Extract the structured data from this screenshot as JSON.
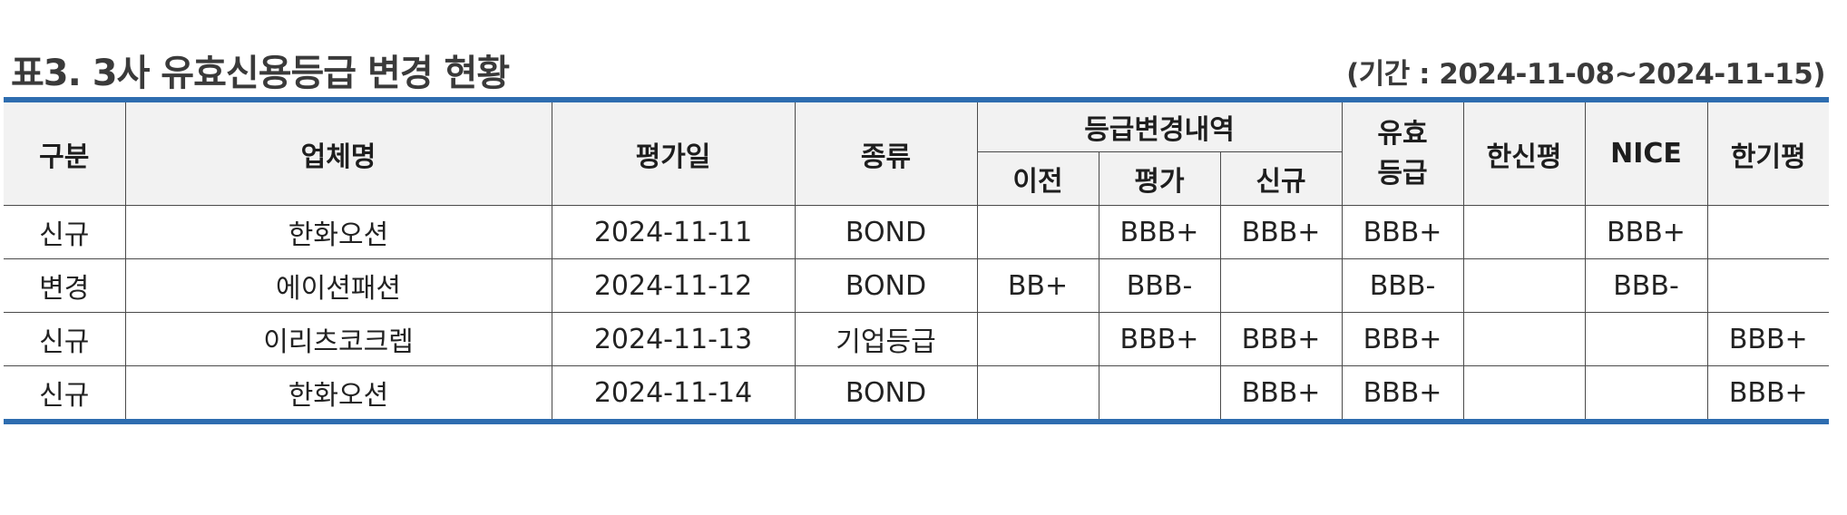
{
  "title": "표3. 3사 유효신용등급 변경 현황",
  "period": "(기간 : 2024-11-08~2024-11-15)",
  "colors": {
    "accent_border": "#2e6db0",
    "header_bg": "#f2f2f2"
  },
  "table": {
    "headers": {
      "category": "구분",
      "company": "업체명",
      "eval_date": "평가일",
      "kind": "종류",
      "change_group": "등급변경내역",
      "prev": "이전",
      "eval": "평가",
      "new": "신규",
      "valid_line1": "유효",
      "valid_line2": "등급",
      "hanshin": "한신평",
      "nice": "NICE",
      "hangi": "한기평"
    },
    "rows": [
      {
        "category": "신규",
        "company": "한화오션",
        "eval_date": "2024-11-11",
        "kind": "BOND",
        "prev": "",
        "eval": "BBB+",
        "new": "BBB+",
        "valid": "BBB+",
        "hanshin": "",
        "nice": "BBB+",
        "hangi": ""
      },
      {
        "category": "변경",
        "company": "에이션패션",
        "eval_date": "2024-11-12",
        "kind": "BOND",
        "prev": "BB+",
        "eval": "BBB-",
        "new": "",
        "valid": "BBB-",
        "hanshin": "",
        "nice": "BBB-",
        "hangi": ""
      },
      {
        "category": "신규",
        "company": "이리츠코크렙",
        "eval_date": "2024-11-13",
        "kind": "기업등급",
        "prev": "",
        "eval": "BBB+",
        "new": "BBB+",
        "valid": "BBB+",
        "hanshin": "",
        "nice": "",
        "hangi": "BBB+"
      },
      {
        "category": "신규",
        "company": "한화오션",
        "eval_date": "2024-11-14",
        "kind": "BOND",
        "prev": "",
        "eval": "",
        "new": "BBB+",
        "valid": "BBB+",
        "hanshin": "",
        "nice": "",
        "hangi": "BBB+"
      }
    ]
  }
}
